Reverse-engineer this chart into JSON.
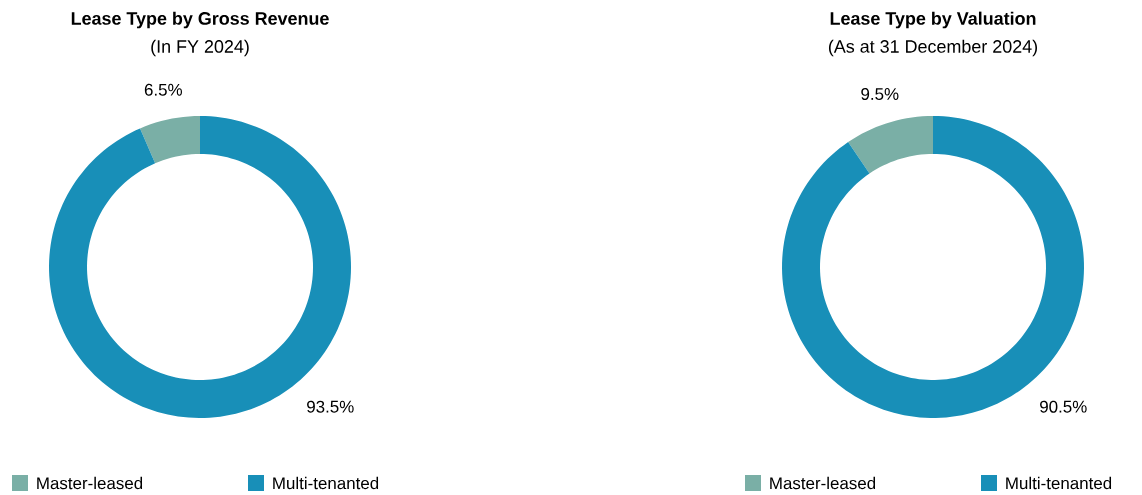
{
  "chart_data": [
    {
      "type": "donut",
      "title": "Lease Type by Gross Revenue",
      "subtitle": "(In FY 2024)",
      "categories": [
        "Master-leased",
        "Multi-tenanted"
      ],
      "values": [
        6.5,
        93.5
      ],
      "value_labels": [
        "6.5%",
        "93.5%"
      ],
      "colors": [
        "#7aafa6",
        "#188fb8"
      ],
      "legend": "bottom"
    },
    {
      "type": "donut",
      "title": "Lease Type by Valuation",
      "subtitle": "(As at 31 December 2024)",
      "categories": [
        "Master-leased",
        "Multi-tenanted"
      ],
      "values": [
        9.5,
        90.5
      ],
      "value_labels": [
        "9.5%",
        "90.5%"
      ],
      "colors": [
        "#7aafa6",
        "#188fb8"
      ],
      "legend": "bottom"
    }
  ]
}
